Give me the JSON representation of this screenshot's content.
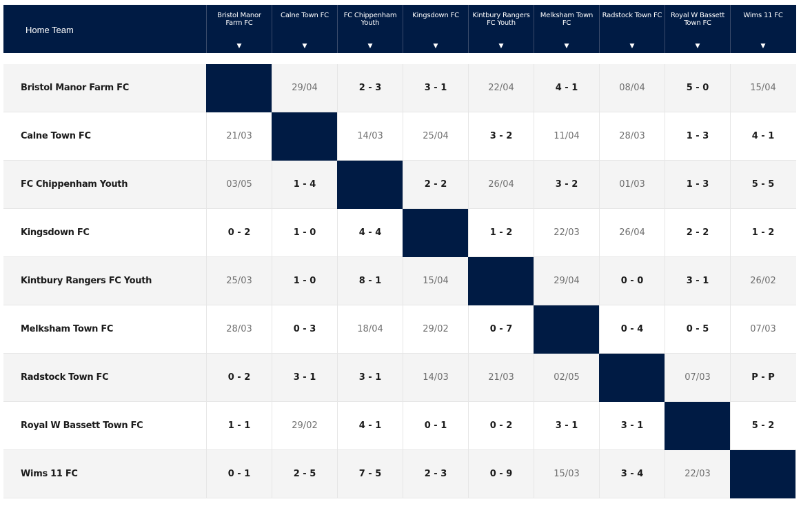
{
  "table": {
    "home_team_label": "Home Team",
    "sort_icon_glyph": "▼",
    "columns": [
      "Bristol Manor Farm FC",
      "Calne Town FC",
      "FC Chippenham Youth",
      "Kingsdown FC",
      "Kintbury Rangers FC Youth",
      "Melksham Town FC",
      "Radstock Town FC",
      "Royal W Bassett Town FC",
      "Wims 11 FC"
    ],
    "rows": [
      {
        "team": "Bristol Manor Farm FC",
        "cells": [
          "",
          "29/04",
          "2 - 3",
          "3 - 1",
          "22/04",
          "4 - 1",
          "08/04",
          "5 - 0",
          "15/04"
        ]
      },
      {
        "team": "Calne Town FC",
        "cells": [
          "21/03",
          "",
          "14/03",
          "25/04",
          "3 - 2",
          "11/04",
          "28/03",
          "1 - 3",
          "4 - 1"
        ]
      },
      {
        "team": "FC Chippenham Youth",
        "cells": [
          "03/05",
          "1 - 4",
          "",
          "2 - 2",
          "26/04",
          "3 - 2",
          "01/03",
          "1 - 3",
          "5 - 5"
        ]
      },
      {
        "team": "Kingsdown FC",
        "cells": [
          "0 - 2",
          "1 - 0",
          "4 - 4",
          "",
          "1 - 2",
          "22/03",
          "26/04",
          "2 - 2",
          "1 - 2"
        ]
      },
      {
        "team": "Kintbury Rangers FC Youth",
        "cells": [
          "25/03",
          "1 - 0",
          "8 - 1",
          "15/04",
          "",
          "29/04",
          "0 - 0",
          "3 - 1",
          "26/02"
        ]
      },
      {
        "team": "Melksham Town FC",
        "cells": [
          "28/03",
          "0 - 3",
          "18/04",
          "29/02",
          "0 - 7",
          "",
          "0 - 4",
          "0 - 5",
          "07/03"
        ]
      },
      {
        "team": "Radstock Town FC",
        "cells": [
          "0 - 2",
          "3 - 1",
          "3 - 1",
          "14/03",
          "21/03",
          "02/05",
          "",
          "07/03",
          "P - P"
        ]
      },
      {
        "team": "Royal W Bassett Town FC",
        "cells": [
          "1 - 1",
          "29/02",
          "4 - 1",
          "0 - 1",
          "0 - 2",
          "3 - 1",
          "3 - 1",
          "",
          "5 - 2"
        ]
      },
      {
        "team": "Wims 11 FC",
        "cells": [
          "0 - 1",
          "2 - 5",
          "7 - 5",
          "2 - 3",
          "0 - 9",
          "15/03",
          "3 - 4",
          "22/03",
          ""
        ]
      }
    ]
  },
  "colors": {
    "header_bg": "#001b44",
    "self_cell": "#001b44",
    "row_alt": "#f4f4f4"
  }
}
